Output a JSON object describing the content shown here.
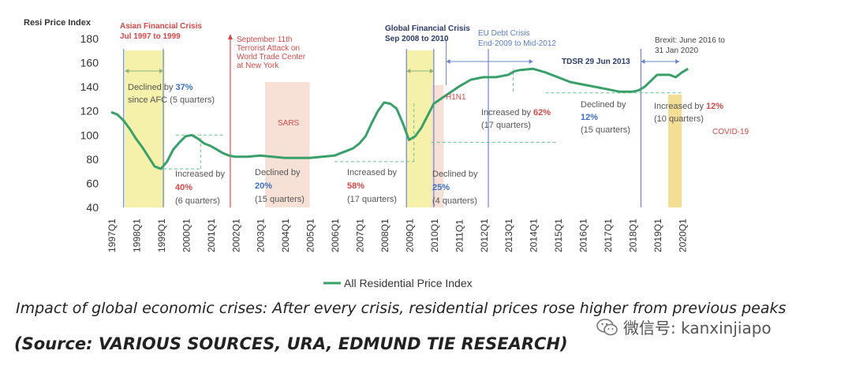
{
  "chart_data": {
    "type": "line",
    "ylabel": "Resi Price Index",
    "ylim": [
      40,
      180
    ],
    "yticks": [
      40,
      60,
      80,
      100,
      120,
      140,
      160,
      180
    ],
    "xticks": [
      "1997Q1",
      "1998Q1",
      "1999Q1",
      "2000Q1",
      "2001Q1",
      "2002Q1",
      "2003Q1",
      "2004Q1",
      "2005Q1",
      "2006Q1",
      "2007Q1",
      "2008Q1",
      "2009Q1",
      "2010Q1",
      "2011Q1",
      "2012Q1",
      "2013Q1",
      "2014Q1",
      "2015Q1",
      "2016Q1",
      "2017Q1",
      "2018Q1",
      "2019Q1",
      "2020Q1"
    ],
    "legend": "All Residential Price Index",
    "series": [
      {
        "name": "All Residential Price Index",
        "color": "#3aa06a",
        "x": [
          0,
          0.25,
          0.5,
          0.75,
          1,
          1.25,
          1.5,
          1.75,
          2,
          2.25,
          2.5,
          2.75,
          3,
          3.25,
          3.5,
          3.75,
          4,
          4.25,
          4.5,
          4.75,
          5,
          5.5,
          6,
          6.5,
          7,
          7.5,
          8,
          8.5,
          9,
          9.25,
          9.5,
          9.75,
          10,
          10.25,
          10.5,
          10.75,
          11,
          11.25,
          11.5,
          11.75,
          12,
          12.25,
          12.5,
          12.75,
          13,
          13.5,
          14,
          14.5,
          15,
          15.5,
          16,
          16.25,
          16.5,
          17,
          17.5,
          18,
          18.5,
          19,
          19.5,
          20,
          20.5,
          21,
          21.25,
          21.5,
          22,
          22.5,
          22.75,
          23,
          23.25
        ],
        "y": [
          119,
          117,
          112,
          105,
          97,
          90,
          82,
          74,
          72,
          78,
          88,
          94,
          99,
          100,
          97,
          93,
          91,
          88,
          85,
          83,
          82,
          82,
          83,
          82,
          81,
          81,
          81,
          82,
          83,
          85,
          87,
          89,
          93,
          99,
          110,
          120,
          127,
          126,
          122,
          110,
          96,
          99,
          106,
          116,
          126,
          133,
          140,
          146,
          148,
          148,
          150,
          153,
          154,
          155,
          152,
          148,
          144,
          142,
          140,
          138,
          136,
          136,
          137,
          140,
          150,
          150,
          148,
          152,
          155
        ]
      }
    ]
  },
  "annotations": [
    {
      "id": "afc_title",
      "text": "Asian Financial Crisis",
      "color": "#d94848"
    },
    {
      "id": "afc_dates",
      "text": "Jul 1997 to 1999",
      "color": "#d94848"
    },
    {
      "id": "sept_l1",
      "text": "September 11th",
      "color": "#d94848"
    },
    {
      "id": "sept_l2",
      "text": "Terrorist Attack on",
      "color": "#d94848"
    },
    {
      "id": "sept_l3",
      "text": "World Trade Center",
      "color": "#d94848"
    },
    {
      "id": "sept_l4",
      "text": "at New York",
      "color": "#d94848"
    },
    {
      "id": "gfc_title",
      "text": "Global Financial Crisis",
      "color": "#2a3b6b"
    },
    {
      "id": "gfc_dates",
      "text": "Sep 2008 to 2010",
      "color": "#2a3b6b"
    },
    {
      "id": "eu_title",
      "text": "EU Debt Crisis",
      "color": "#5b7fc4"
    },
    {
      "id": "eu_dates",
      "text": "End-2009 to Mid-2012",
      "color": "#5b7fc4"
    },
    {
      "id": "tdsr",
      "text": "TDSR 29 Jun 2013",
      "color": "#2a3b6b"
    },
    {
      "id": "brexit1",
      "text": "Brexit: June 2016 to",
      "color": "#444444"
    },
    {
      "id": "brexit2",
      "text": "31 Jan 2020",
      "color": "#444444"
    },
    {
      "id": "sars",
      "text": "SARS",
      "color": "#d94848"
    },
    {
      "id": "h1n1",
      "text": "H1N1",
      "color": "#d94848"
    },
    {
      "id": "covid",
      "text": "COVID-19",
      "color": "#d94848"
    },
    {
      "id": "d37a",
      "text": "Declined by ",
      "color": "#555555"
    },
    {
      "id": "d37b",
      "text": "37%",
      "color": "#3a6fc4"
    },
    {
      "id": "d37c",
      "text": "since AFC (5 quarters)",
      "color": "#555555"
    },
    {
      "id": "i40a",
      "text": "Increased by",
      "color": "#555555"
    },
    {
      "id": "i40b",
      "text": "40%",
      "color": "#d94848"
    },
    {
      "id": "i40c",
      "text": "(6 quarters)",
      "color": "#555555"
    },
    {
      "id": "d20a",
      "text": "Declined by",
      "color": "#555555"
    },
    {
      "id": "d20b",
      "text": "20%",
      "color": "#3a6fc4"
    },
    {
      "id": "d20c",
      "text": "(15 quarters)",
      "color": "#555555"
    },
    {
      "id": "i58a",
      "text": "Increased by",
      "color": "#555555"
    },
    {
      "id": "i58b",
      "text": "58%",
      "color": "#d94848"
    },
    {
      "id": "i58c",
      "text": "(17 quarters)",
      "color": "#555555"
    },
    {
      "id": "d25a",
      "text": "Declined by",
      "color": "#555555"
    },
    {
      "id": "d25b",
      "text": "25%",
      "color": "#3a6fc4"
    },
    {
      "id": "d25c",
      "text": "(4 quarters)",
      "color": "#555555"
    },
    {
      "id": "i62a",
      "text": "Increased by ",
      "color": "#555555"
    },
    {
      "id": "i62b",
      "text": "62%",
      "color": "#d94848"
    },
    {
      "id": "i62c",
      "text": "(17 quarters)",
      "color": "#555555"
    },
    {
      "id": "d12a",
      "text": "Declined by",
      "color": "#555555"
    },
    {
      "id": "d12b",
      "text": "12%",
      "color": "#3a6fc4"
    },
    {
      "id": "d12c",
      "text": "(15 quarters)",
      "color": "#555555"
    },
    {
      "id": "i12a",
      "text": "Increased by ",
      "color": "#555555"
    },
    {
      "id": "i12b",
      "text": "12%",
      "color": "#d94848"
    },
    {
      "id": "i12c",
      "text": "(10 quarters)",
      "color": "#555555"
    }
  ],
  "caption": "Impact of global economic crises: After every crisis, residential prices rose higher from previous peaks",
  "source": "(Source: VARIOUS SOURCES, URA, EDMUND TIE RESEARCH)",
  "watermark": "微信号: kanxinjiapo",
  "colors": {
    "crisis_band": "#f3ef9c",
    "event_band": "#f6dccf",
    "covid_band": "#f3d98a",
    "marker_line": "#6b86c6",
    "axis_text": "#333333"
  }
}
